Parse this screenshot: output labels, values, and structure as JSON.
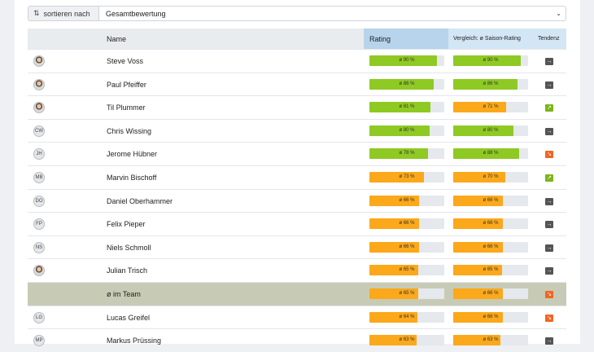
{
  "sort": {
    "label": "sortieren nach",
    "icon": "sort-icon",
    "selected": "Gesamtbewertung"
  },
  "header": {
    "name": "Name",
    "rating": "Rating",
    "compare": "Vergleich: ø Saison-Rating",
    "trend": "Tendenz"
  },
  "colors": {
    "green": "#8fc923",
    "orange": "#fba81a",
    "trend_same": "#555555",
    "trend_up": "#7cb518",
    "trend_down": "#f26522"
  },
  "rows": [
    {
      "initials": "",
      "photo": true,
      "name": "Steve Voss",
      "rating": 90,
      "rating_label": "ø 90 %",
      "rating_color": "green",
      "compare": 90,
      "compare_label": "ø 90 %",
      "compare_color": "green",
      "trend": "same",
      "trend_glyph": "→"
    },
    {
      "initials": "",
      "photo": true,
      "name": "Paul Pfeiffer",
      "rating": 86,
      "rating_label": "ø 86 %",
      "rating_color": "green",
      "compare": 86,
      "compare_label": "ø 86 %",
      "compare_color": "green",
      "trend": "same",
      "trend_glyph": "→"
    },
    {
      "initials": "",
      "photo": true,
      "name": "Til Plummer",
      "rating": 81,
      "rating_label": "ø 81 %",
      "rating_color": "green",
      "compare": 71,
      "compare_label": "ø 71 %",
      "compare_color": "orange",
      "trend": "up",
      "trend_glyph": "↗"
    },
    {
      "initials": "CW",
      "photo": false,
      "name": "Chris Wissing",
      "rating": 80,
      "rating_label": "ø 80 %",
      "rating_color": "green",
      "compare": 80,
      "compare_label": "ø 80 %",
      "compare_color": "green",
      "trend": "same",
      "trend_glyph": "→"
    },
    {
      "initials": "JH",
      "photo": false,
      "name": "Jerome Hübner",
      "rating": 78,
      "rating_label": "ø 78 %",
      "rating_color": "green",
      "compare": 88,
      "compare_label": "ø 88 %",
      "compare_color": "green",
      "trend": "down",
      "trend_glyph": "↘"
    },
    {
      "initials": "MB",
      "photo": false,
      "name": "Marvin Bischoff",
      "rating": 73,
      "rating_label": "ø 73 %",
      "rating_color": "orange",
      "compare": 70,
      "compare_label": "ø 70 %",
      "compare_color": "orange",
      "trend": "up",
      "trend_glyph": "↗"
    },
    {
      "initials": "DO",
      "photo": false,
      "name": "Daniel Oberhammer",
      "rating": 66,
      "rating_label": "ø 66 %",
      "rating_color": "orange",
      "compare": 66,
      "compare_label": "ø 66 %",
      "compare_color": "orange",
      "trend": "same",
      "trend_glyph": "→"
    },
    {
      "initials": "FP",
      "photo": false,
      "name": "Felix Pieper",
      "rating": 66,
      "rating_label": "ø 66 %",
      "rating_color": "orange",
      "compare": 66,
      "compare_label": "ø 66 %",
      "compare_color": "orange",
      "trend": "same",
      "trend_glyph": "→"
    },
    {
      "initials": "NS",
      "photo": false,
      "name": "Niels Schmoll",
      "rating": 66,
      "rating_label": "ø 66 %",
      "rating_color": "orange",
      "compare": 66,
      "compare_label": "ø 66 %",
      "compare_color": "orange",
      "trend": "same",
      "trend_glyph": "→"
    },
    {
      "initials": "",
      "photo": true,
      "name": "Julian Trisch",
      "rating": 65,
      "rating_label": "ø 65 %",
      "rating_color": "orange",
      "compare": 65,
      "compare_label": "ø 65 %",
      "compare_color": "orange",
      "trend": "same",
      "trend_glyph": "→"
    },
    {
      "initials": "",
      "photo": false,
      "team": true,
      "name": "ø im Team",
      "rating": 65,
      "rating_label": "ø 65 %",
      "rating_color": "orange",
      "compare": 66,
      "compare_label": "ø 66 %",
      "compare_color": "orange",
      "trend": "down",
      "trend_glyph": "↘"
    },
    {
      "initials": "LG",
      "photo": false,
      "name": "Lucas Greifel",
      "rating": 64,
      "rating_label": "ø 64 %",
      "rating_color": "orange",
      "compare": 66,
      "compare_label": "ø 66 %",
      "compare_color": "orange",
      "trend": "down",
      "trend_glyph": "↘"
    },
    {
      "initials": "MP",
      "photo": false,
      "name": "Markus Prüssing",
      "rating": 63,
      "rating_label": "ø 63 %",
      "rating_color": "orange",
      "compare": 63,
      "compare_label": "ø 63 %",
      "compare_color": "orange",
      "trend": "same",
      "trend_glyph": "→"
    }
  ]
}
